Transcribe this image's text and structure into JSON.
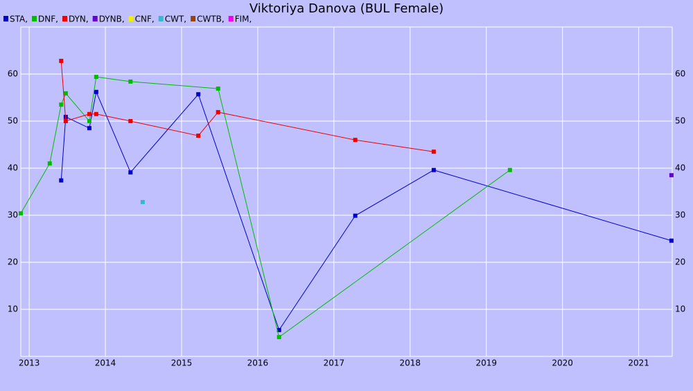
{
  "chart_data": {
    "type": "line",
    "title": "Viktoriya Danova (BUL Female)",
    "xlim": [
      2012.89,
      2021.44
    ],
    "xticks": [
      2013,
      2014,
      2015,
      2016,
      2017,
      2018,
      2019,
      2020,
      2021
    ],
    "ylim": [
      0,
      70
    ],
    "yticks": [
      10,
      20,
      30,
      40,
      50,
      60
    ],
    "grid": true,
    "series": [
      {
        "name": "STA,",
        "color": "#0000cc",
        "x": [
          2013.42,
          2013.48,
          2013.79,
          2013.88,
          2014.33,
          2015.22,
          2016.28,
          2017.28,
          2018.31,
          2021.43
        ],
        "values": [
          37.4,
          50.9,
          48.5,
          56.2,
          39.1,
          55.7,
          5.6,
          29.9,
          39.6,
          24.6
        ]
      },
      {
        "name": "DNF,",
        "color": "#00bb00",
        "x": [
          2012.89,
          2013.27,
          2013.42,
          2013.48,
          2013.79,
          2013.88,
          2014.33,
          2015.48,
          2016.28,
          2019.31
        ],
        "values": [
          30.4,
          41.0,
          53.5,
          55.9,
          50.0,
          59.4,
          58.4,
          56.9,
          4.1,
          39.6
        ]
      },
      {
        "name": "DYN,",
        "color": "#ee0000",
        "x": [
          2013.42,
          2013.48,
          2013.79,
          2013.88,
          2014.33,
          2015.22,
          2015.48,
          2017.28,
          2018.31
        ],
        "values": [
          62.8,
          50.0,
          51.5,
          51.5,
          50.0,
          46.9,
          51.9,
          46.0,
          43.5
        ]
      },
      {
        "name": "DYNB,",
        "color": "#6600cc",
        "x": [
          2021.43
        ],
        "values": [
          38.5
        ]
      },
      {
        "name": "CNF,",
        "color": "#eeee00",
        "x": [],
        "values": []
      },
      {
        "name": "CWT,",
        "color": "#33bbcc",
        "x": [
          2014.49
        ],
        "values": [
          32.8
        ]
      },
      {
        "name": "CWTB,",
        "color": "#994400",
        "x": [],
        "values": []
      },
      {
        "name": "FIM,",
        "color": "#ee00ee",
        "x": [],
        "values": []
      }
    ]
  }
}
